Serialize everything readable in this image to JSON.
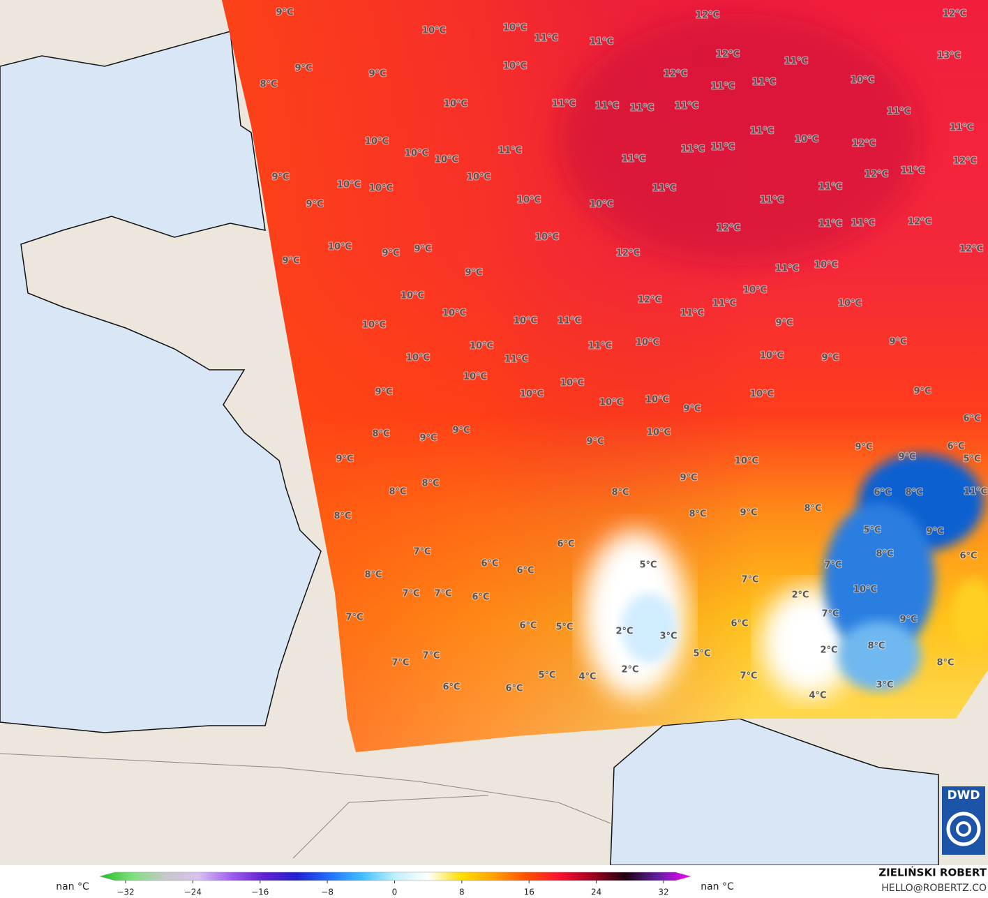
{
  "map": {
    "labels": [
      "9°C",
      "10°C",
      "10°C",
      "11°C",
      "11°C",
      "12°C",
      "12°C",
      "12°C",
      "13°C",
      "9°C",
      "9°C",
      "8°C",
      "10°C",
      "12°C",
      "11°C",
      "10°C",
      "11°C",
      "11°C",
      "10°C",
      "11°C",
      "11°C",
      "11°C",
      "11°C",
      "11°C",
      "11°C",
      "11°C",
      "10°C",
      "12°C",
      "10°C",
      "10°C",
      "10°C",
      "11°C",
      "11°C",
      "11°C",
      "11°C",
      "12°C",
      "12°C",
      "11°C",
      "9°C",
      "10°C",
      "10°C",
      "10°C",
      "11°C",
      "11°C",
      "10°C",
      "10°C",
      "11°C",
      "9°C",
      "12°C",
      "11°C",
      "11°C",
      "12°C",
      "10°C",
      "10°C",
      "9°C",
      "9°C",
      "12°C",
      "12°C",
      "9°C",
      "11°C",
      "10°C",
      "9°C",
      "10°C",
      "10°C",
      "12°C",
      "11°C",
      "10°C",
      "10°C",
      "11°C",
      "10°C",
      "10°C",
      "11°C",
      "9°C",
      "10°C",
      "11°C",
      "10°C",
      "9°C",
      "10°C",
      "11°C",
      "10°C",
      "9°C",
      "10°C",
      "10°C",
      "9°C",
      "10°C",
      "10°C",
      "10°C",
      "9°C",
      "10°C",
      "9°C",
      "6°C",
      "8°C",
      "9°C",
      "9°C",
      "10°C",
      "9°C",
      "9°C",
      "6°C",
      "5°C",
      "9°C",
      "9°C",
      "10°C",
      "8°C",
      "9°C",
      "8°C",
      "8°C",
      "6°C",
      "8°C",
      "11°C",
      "8°C",
      "8°C",
      "9°C",
      "8°C",
      "5°C",
      "9°C",
      "6°C",
      "7°C",
      "8°C",
      "6°C",
      "6°C",
      "5°C",
      "6°C",
      "7°C",
      "8°C",
      "7°C",
      "10°C",
      "7°C",
      "7°C",
      "6°C",
      "2°C",
      "7°C",
      "7°C",
      "9°C",
      "6°C",
      "5°C",
      "6°C",
      "2°C",
      "3°C",
      "8°C",
      "2°C",
      "5°C",
      "7°C",
      "7°C",
      "8°C",
      "2°C",
      "5°C",
      "4°C",
      "7°C",
      "6°C",
      "6°C",
      "3°C",
      "4°C"
    ]
  },
  "colorbar": {
    "left_label": "nan °C",
    "right_label": "nan °C",
    "ticks": [
      {
        "value": -32,
        "label": "−32"
      },
      {
        "value": -24,
        "label": "−24"
      },
      {
        "value": -16,
        "label": "−16"
      },
      {
        "value": -8,
        "label": "−8"
      },
      0,
      8,
      16,
      24,
      32
    ],
    "colors": [
      "#20c020",
      "#80e080",
      "#c8c8c8",
      "#d8c0f0",
      "#a060f0",
      "#6020d0",
      "#2020d0",
      "#2070ff",
      "#40c0ff",
      "#c0f0ff",
      "#ffffff",
      "#ffe000",
      "#ffa000",
      "#ff5000",
      "#ff1030",
      "#a00020",
      "#200010",
      "#6020a0",
      "#ff00ff"
    ]
  },
  "credits": {
    "author": "ZIELIŃSKI ROBERT",
    "contact": "HELLO@ROBERTZ.CO"
  },
  "logo": "DWD"
}
